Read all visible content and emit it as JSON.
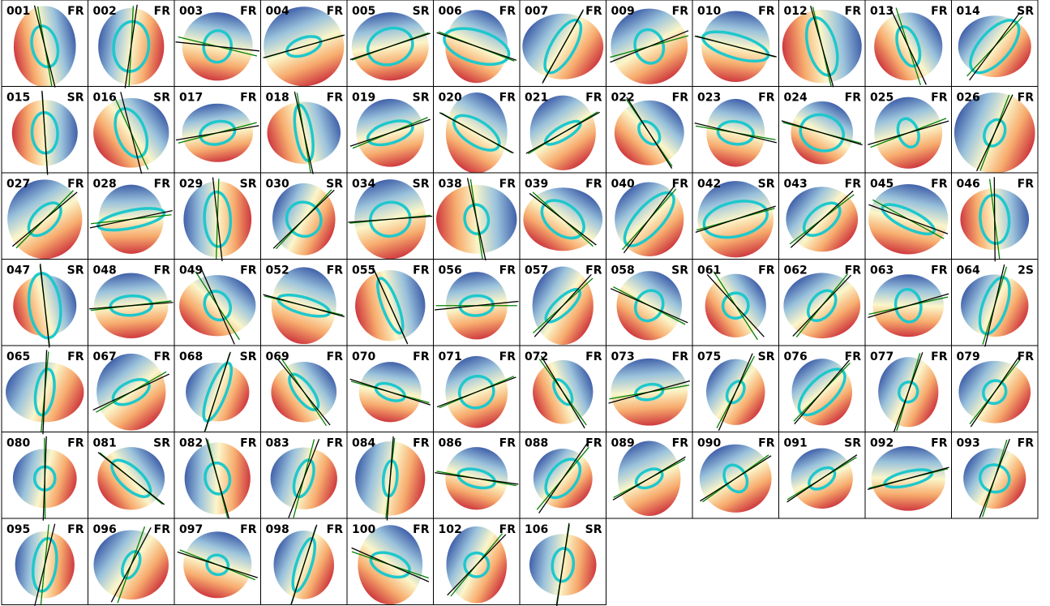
{
  "panels": [
    {
      "id": "001",
      "class": "FR"
    },
    {
      "id": "002",
      "class": "FR"
    },
    {
      "id": "003",
      "class": "FR"
    },
    {
      "id": "004",
      "class": "FR"
    },
    {
      "id": "005",
      "class": "SR"
    },
    {
      "id": "006",
      "class": "FR"
    },
    {
      "id": "007",
      "class": "FR"
    },
    {
      "id": "009",
      "class": "FR"
    },
    {
      "id": "010",
      "class": "FR"
    },
    {
      "id": "012",
      "class": "FR"
    },
    {
      "id": "013",
      "class": "FR"
    },
    {
      "id": "014",
      "class": "SR"
    },
    {
      "id": "015",
      "class": "SR"
    },
    {
      "id": "016",
      "class": "SR"
    },
    {
      "id": "017",
      "class": "FR"
    },
    {
      "id": "018",
      "class": "FR"
    },
    {
      "id": "019",
      "class": "SR"
    },
    {
      "id": "020",
      "class": "FR"
    },
    {
      "id": "021",
      "class": "FR"
    },
    {
      "id": "022",
      "class": "FR"
    },
    {
      "id": "023",
      "class": "FR"
    },
    {
      "id": "024",
      "class": "FR"
    },
    {
      "id": "025",
      "class": "FR"
    },
    {
      "id": "026",
      "class": "FR"
    },
    {
      "id": "027",
      "class": "FR"
    },
    {
      "id": "028",
      "class": "FR"
    },
    {
      "id": "029",
      "class": "SR"
    },
    {
      "id": "030",
      "class": "SR"
    },
    {
      "id": "034",
      "class": "SR"
    },
    {
      "id": "038",
      "class": "FR"
    },
    {
      "id": "039",
      "class": "FR"
    },
    {
      "id": "040",
      "class": "FR"
    },
    {
      "id": "042",
      "class": "SR"
    },
    {
      "id": "043",
      "class": "FR"
    },
    {
      "id": "045",
      "class": "FR"
    },
    {
      "id": "046",
      "class": "FR"
    },
    {
      "id": "047",
      "class": "SR"
    },
    {
      "id": "048",
      "class": "FR"
    },
    {
      "id": "049",
      "class": "FR"
    },
    {
      "id": "052",
      "class": "FR"
    },
    {
      "id": "055",
      "class": "FR"
    },
    {
      "id": "056",
      "class": "FR"
    },
    {
      "id": "057",
      "class": "FR"
    },
    {
      "id": "058",
      "class": "SR"
    },
    {
      "id": "061",
      "class": "FR"
    },
    {
      "id": "062",
      "class": "FR"
    },
    {
      "id": "063",
      "class": "FR"
    },
    {
      "id": "064",
      "class": "2S"
    },
    {
      "id": "065",
      "class": "FR"
    },
    {
      "id": "067",
      "class": "FR"
    },
    {
      "id": "068",
      "class": "SR"
    },
    {
      "id": "069",
      "class": "FR"
    },
    {
      "id": "070",
      "class": "FR"
    },
    {
      "id": "071",
      "class": "FR"
    },
    {
      "id": "072",
      "class": "FR"
    },
    {
      "id": "073",
      "class": "FR"
    },
    {
      "id": "075",
      "class": "SR"
    },
    {
      "id": "076",
      "class": "FR"
    },
    {
      "id": "077",
      "class": "FR"
    },
    {
      "id": "079",
      "class": "FR"
    },
    {
      "id": "080",
      "class": "FR"
    },
    {
      "id": "081",
      "class": "SR"
    },
    {
      "id": "082",
      "class": "FR"
    },
    {
      "id": "083",
      "class": "FR"
    },
    {
      "id": "084",
      "class": "FR"
    },
    {
      "id": "086",
      "class": "FR"
    },
    {
      "id": "088",
      "class": "FR"
    },
    {
      "id": "089",
      "class": "FR"
    },
    {
      "id": "090",
      "class": "FR"
    },
    {
      "id": "091",
      "class": "SR"
    },
    {
      "id": "092",
      "class": "FR"
    },
    {
      "id": "093",
      "class": "FR"
    },
    {
      "id": "095",
      "class": "FR"
    },
    {
      "id": "096",
      "class": "FR"
    },
    {
      "id": "097",
      "class": "FR"
    },
    {
      "id": "098",
      "class": "FR"
    },
    {
      "id": "100",
      "class": "FR"
    },
    {
      "id": "102",
      "class": "FR"
    },
    {
      "id": "106",
      "class": "SR"
    }
  ]
}
